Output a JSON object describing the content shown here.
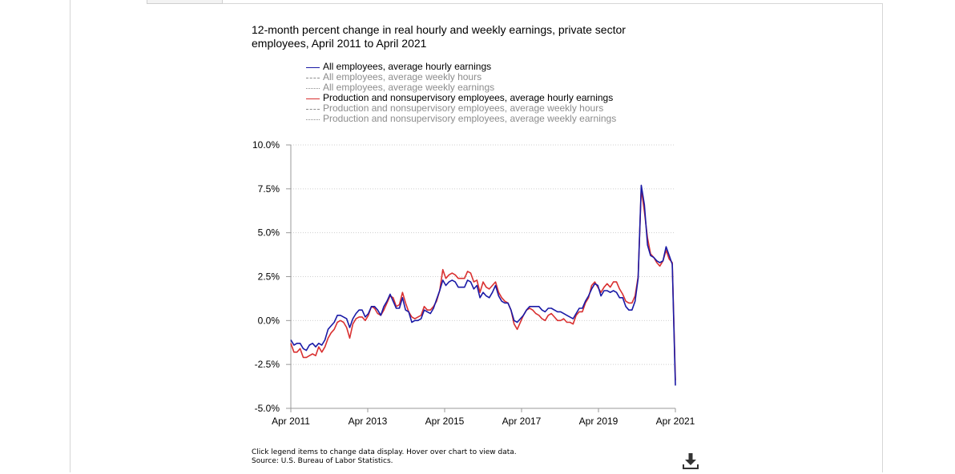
{
  "chart_data": {
    "type": "line",
    "title": "12-month percent change in real hourly and weekly earnings, private sector employees, April 2011 to April 2021",
    "x_ticks": [
      "Apr 2011",
      "Apr 2013",
      "Apr 2015",
      "Apr 2017",
      "Apr 2019",
      "Apr 2021"
    ],
    "y_ticks": [
      "10.0%",
      "7.5%",
      "5.0%",
      "2.5%",
      "0.0%",
      "-2.5%",
      "-5.0%"
    ],
    "ylim": [
      -5,
      10
    ],
    "x_start": "2011-04",
    "x_end": "2021-04",
    "grid": "horizontal dotted",
    "legend_position": "top",
    "series": [
      {
        "name": "All employees, average hourly earnings",
        "color": "#1a1aa6",
        "dash": "solid",
        "visible": true,
        "values": [
          -1.1,
          -1.4,
          -1.3,
          -1.3,
          -1.6,
          -1.7,
          -1.4,
          -1.3,
          -1.5,
          -1.3,
          -1.4,
          -1.1,
          -0.5,
          -0.3,
          -0.1,
          0.3,
          0.3,
          0.2,
          0.1,
          -0.4,
          0.1,
          0.4,
          0.6,
          0.6,
          0.2,
          0.4,
          0.8,
          0.8,
          0.6,
          0.3,
          0.8,
          1.1,
          1.5,
          1.1,
          0.7,
          0.7,
          1.3,
          0.6,
          0.5,
          -0.1,
          0.0,
          0.0,
          0.1,
          0.6,
          0.5,
          0.4,
          0.7,
          1.2,
          1.7,
          2.3,
          2.0,
          2.2,
          2.3,
          2.2,
          1.9,
          1.9,
          1.9,
          2.3,
          2.2,
          1.8,
          2.0,
          1.3,
          1.6,
          1.4,
          1.3,
          1.6,
          2.0,
          1.4,
          1.1,
          1.0,
          1.0,
          0.6,
          0.0,
          -0.1,
          0.1,
          0.3,
          0.6,
          0.8,
          0.8,
          0.8,
          0.8,
          0.6,
          0.5,
          0.7,
          0.7,
          0.6,
          0.5,
          0.5,
          0.4,
          0.3,
          0.2,
          0.1,
          0.4,
          0.7,
          0.7,
          1.1,
          1.4,
          1.8,
          2.1,
          2.0,
          1.4,
          1.7,
          1.7,
          1.6,
          1.7,
          1.6,
          1.3,
          1.3,
          0.8,
          0.6,
          0.6,
          1.1,
          2.4,
          7.7,
          6.6,
          4.3,
          3.7,
          3.6,
          3.4,
          3.3,
          3.4,
          4.2,
          3.7,
          3.2,
          -3.7
        ],
        "values_note": "Monthly from Apr 2011 to Apr 2021, read from the plot."
      },
      {
        "name": "All employees, average weekly hours",
        "color": "#8c8c8c",
        "dash": "dashed",
        "visible": false
      },
      {
        "name": "All employees, average weekly earnings",
        "color": "#8c8c8c",
        "dash": "dotted",
        "visible": false
      },
      {
        "name": "Production and nonsupervisory employees, average hourly earnings",
        "color": "#d93030",
        "dash": "solid",
        "visible": true,
        "values": [
          -1.3,
          -1.8,
          -1.8,
          -1.6,
          -2.1,
          -2.1,
          -2.0,
          -1.9,
          -2.0,
          -1.5,
          -1.8,
          -1.5,
          -1.0,
          -0.7,
          -0.5,
          -0.1,
          0.0,
          -0.1,
          -0.4,
          -1.0,
          -0.2,
          0.1,
          0.2,
          0.2,
          0.0,
          0.3,
          0.8,
          0.7,
          0.4,
          0.3,
          0.6,
          1.0,
          1.4,
          1.3,
          0.8,
          0.9,
          1.6,
          1.0,
          0.5,
          0.2,
          0.1,
          0.2,
          0.3,
          0.8,
          0.6,
          0.6,
          0.8,
          1.1,
          1.7,
          2.9,
          2.4,
          2.6,
          2.7,
          2.6,
          2.4,
          2.4,
          2.4,
          2.8,
          2.7,
          2.2,
          2.3,
          1.6,
          2.2,
          1.9,
          1.8,
          2.0,
          2.2,
          1.6,
          1.3,
          1.1,
          1.0,
          0.6,
          -0.2,
          -0.5,
          -0.1,
          0.3,
          0.6,
          0.7,
          0.6,
          0.4,
          0.3,
          0.1,
          0.0,
          0.3,
          0.4,
          0.2,
          0.0,
          0.0,
          0.1,
          -0.1,
          -0.1,
          -0.2,
          0.3,
          0.5,
          0.5,
          1.0,
          1.3,
          2.0,
          2.2,
          1.9,
          1.6,
          1.9,
          2.1,
          1.9,
          2.2,
          2.2,
          1.8,
          1.5,
          1.1,
          1.0,
          1.0,
          1.4,
          2.5,
          7.5,
          6.2,
          4.7,
          3.8,
          3.6,
          3.3,
          3.1,
          3.4,
          4.0,
          3.5,
          3.3,
          -3.4
        ],
        "values_note": "Monthly from Apr 2011 to Apr 2021, read from the plot."
      },
      {
        "name": "Production and nonsupervisory employees, average weekly hours",
        "color": "#8c8c8c",
        "dash": "dashed",
        "visible": false
      },
      {
        "name": "Production and nonsupervisory employees, average weekly earnings",
        "color": "#8c8c8c",
        "dash": "dotted",
        "visible": false
      }
    ]
  },
  "notes": {
    "instructions": "Click legend items to change data display. Hover over chart to view data.",
    "source": "Source: U.S. Bureau of Labor Statistics."
  },
  "toolbar": {
    "download_icon": "download-icon"
  }
}
